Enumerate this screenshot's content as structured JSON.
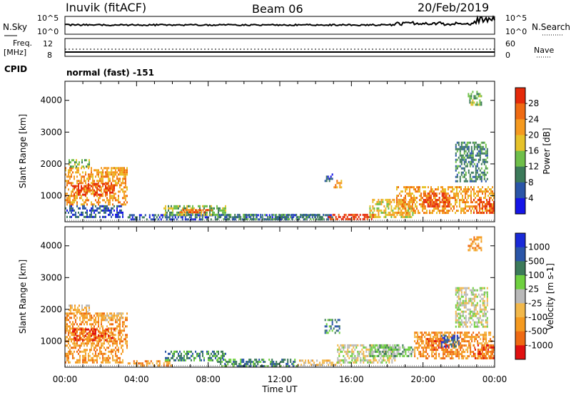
{
  "header": {
    "station": "Inuvik (fitACF)",
    "beam": "Beam 06",
    "date": "20/Feb/2019"
  },
  "noise_panel": {
    "left_label": "N.Sky",
    "right_label": "N.Search",
    "left_ticks": [
      "10^5",
      "10^0"
    ],
    "right_ticks": [
      "10^5",
      "10^0"
    ]
  },
  "freq_panel": {
    "left_label_1": "Freq.",
    "left_label_2": "[MHz]",
    "left_ticks": [
      "12",
      "8"
    ],
    "right_ticks": [
      "60",
      "0"
    ],
    "right_label": "Nave",
    "cpid_label": "CPID",
    "cpid_value": "normal (fast) -151"
  },
  "colors": {
    "power": [
      "#1515e8",
      "#2a55a8",
      "#3c7a5a",
      "#6fbf4a",
      "#e6c22a",
      "#f59a20",
      "#ef6a12",
      "#e52a0a"
    ],
    "velocity": [
      "#e01010",
      "#ef6a12",
      "#f59a20",
      "#f2b84a",
      "#b9b9b9",
      "#6fd040",
      "#3c7a5a",
      "#2a55a8",
      "#1a2ad8"
    ]
  },
  "chart_data": [
    {
      "type": "heatmap",
      "name": "power",
      "title": "",
      "xlabel": "",
      "ylabel": "Slant Range [km]",
      "xlim": [
        "00:00",
        "00:00"
      ],
      "ylim": [
        180,
        4600
      ],
      "x_ticks": [
        "00:00",
        "04:00",
        "08:00",
        "12:00",
        "16:00",
        "20:00",
        "00:00"
      ],
      "y_ticks": [
        "1000",
        "2000",
        "3000",
        "4000"
      ],
      "colorbar_label": "Power [dB]",
      "colorbar_ticks": [
        "28",
        "24",
        "20",
        "16",
        "12",
        "8",
        "4"
      ],
      "regions": [
        {
          "x0": 0.0,
          "x1": 3.5,
          "r0": 700,
          "r1": 1900,
          "level": 5
        },
        {
          "x0": 0.4,
          "x1": 2.8,
          "r0": 1000,
          "r1": 1400,
          "level": 7
        },
        {
          "x0": 2.0,
          "x1": 3.3,
          "r0": 1600,
          "r1": 1900,
          "level": 5
        },
        {
          "x0": 0.2,
          "x1": 1.4,
          "r0": 1900,
          "r1": 2150,
          "level": 3
        },
        {
          "x0": 0.0,
          "x1": 3.3,
          "r0": 300,
          "r1": 700,
          "level": 1
        },
        {
          "x0": 3.5,
          "x1": 15.0,
          "r0": 220,
          "r1": 420,
          "level": 1
        },
        {
          "x0": 5.5,
          "x1": 9.0,
          "r0": 380,
          "r1": 700,
          "level": 3
        },
        {
          "x0": 6.4,
          "x1": 8.2,
          "r0": 430,
          "r1": 580,
          "level": 6
        },
        {
          "x0": 8.5,
          "x1": 14.5,
          "r0": 220,
          "r1": 430,
          "level": 2
        },
        {
          "x0": 14.5,
          "x1": 15.0,
          "r0": 1450,
          "r1": 1700,
          "level": 1
        },
        {
          "x0": 15.0,
          "x1": 15.5,
          "r0": 1200,
          "r1": 1500,
          "level": 5
        },
        {
          "x0": 14.7,
          "x1": 17.3,
          "r0": 200,
          "r1": 430,
          "level": 7
        },
        {
          "x0": 17.0,
          "x1": 19.5,
          "r0": 300,
          "r1": 900,
          "level": 4
        },
        {
          "x0": 18.5,
          "x1": 24.0,
          "r0": 400,
          "r1": 1300,
          "level": 5
        },
        {
          "x0": 20.0,
          "x1": 21.5,
          "r0": 600,
          "r1": 1100,
          "level": 7
        },
        {
          "x0": 22.8,
          "x1": 24.0,
          "r0": 400,
          "r1": 900,
          "level": 7
        },
        {
          "x0": 21.8,
          "x1": 23.6,
          "r0": 1400,
          "r1": 2700,
          "level": 2
        },
        {
          "x0": 22.5,
          "x1": 23.3,
          "r0": 3800,
          "r1": 4300,
          "level": 3
        }
      ]
    },
    {
      "type": "heatmap",
      "name": "velocity",
      "title": "",
      "xlabel": "Time UT",
      "ylabel": "Slant Range [km]",
      "xlim": [
        "00:00",
        "00:00"
      ],
      "ylim": [
        180,
        4600
      ],
      "x_ticks": [
        "00:00",
        "04:00",
        "08:00",
        "12:00",
        "16:00",
        "20:00",
        "00:00"
      ],
      "y_ticks": [
        "1000",
        "2000",
        "3000",
        "4000"
      ],
      "colorbar_label": "Velocity [m s-1]",
      "colorbar_ticks": [
        "1000",
        "500",
        "100",
        "25",
        "-25",
        "-100",
        "-500",
        "-1000"
      ],
      "regions": [
        {
          "x0": 0.0,
          "x1": 3.5,
          "r0": 700,
          "r1": 1900,
          "level": 2
        },
        {
          "x0": 0.4,
          "x1": 2.8,
          "r0": 1000,
          "r1": 1400,
          "level": 1
        },
        {
          "x0": 2.0,
          "x1": 3.3,
          "r0": 1600,
          "r1": 1900,
          "level": 3
        },
        {
          "x0": 0.2,
          "x1": 1.4,
          "r0": 1900,
          "r1": 2150,
          "level": 3
        },
        {
          "x0": 0.0,
          "x1": 3.3,
          "r0": 300,
          "r1": 700,
          "level": 2
        },
        {
          "x0": 3.5,
          "x1": 6.0,
          "r0": 200,
          "r1": 400,
          "level": 2
        },
        {
          "x0": 5.5,
          "x1": 9.0,
          "r0": 380,
          "r1": 700,
          "level": 6
        },
        {
          "x0": 8.5,
          "x1": 13.0,
          "r0": 200,
          "r1": 450,
          "level": 6
        },
        {
          "x0": 13.0,
          "x1": 15.5,
          "r0": 200,
          "r1": 420,
          "level": 3
        },
        {
          "x0": 14.5,
          "x1": 15.4,
          "r0": 1200,
          "r1": 1700,
          "level": 6
        },
        {
          "x0": 15.2,
          "x1": 18.5,
          "r0": 300,
          "r1": 900,
          "level": 4
        },
        {
          "x0": 17.0,
          "x1": 19.5,
          "r0": 500,
          "r1": 900,
          "level": 5
        },
        {
          "x0": 19.5,
          "x1": 24.0,
          "r0": 400,
          "r1": 1300,
          "level": 2
        },
        {
          "x0": 20.2,
          "x1": 21.5,
          "r0": 700,
          "r1": 1100,
          "level": 1
        },
        {
          "x0": 21.0,
          "x1": 22.0,
          "r0": 800,
          "r1": 1200,
          "level": 7
        },
        {
          "x0": 22.8,
          "x1": 24.0,
          "r0": 400,
          "r1": 900,
          "level": 1
        },
        {
          "x0": 21.8,
          "x1": 23.6,
          "r0": 1400,
          "r1": 2700,
          "level": 4
        },
        {
          "x0": 22.5,
          "x1": 23.3,
          "r0": 3800,
          "r1": 4300,
          "level": 2
        }
      ]
    }
  ]
}
